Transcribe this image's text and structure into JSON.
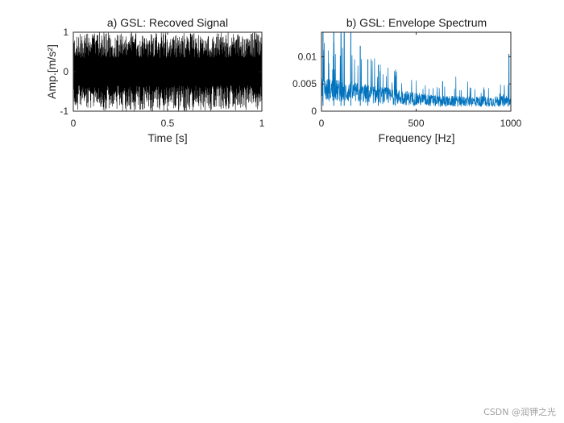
{
  "watermark": "CSDN @润钾之光",
  "chart_data": [
    {
      "type": "line",
      "title": "a) GSL: Recoved Signal",
      "xlabel": "Time [s]",
      "ylabel": "Amp.[m/s²]",
      "xlim": [
        0,
        1
      ],
      "ylim": [
        -1,
        1
      ],
      "xticks": [
        "0",
        "0.5",
        "1"
      ],
      "xtick_values": [
        0,
        0.5,
        1
      ],
      "yticks": [
        "-1",
        "0",
        "1"
      ],
      "ytick_values": [
        -1,
        0,
        1
      ],
      "color": "#000000",
      "grid": false,
      "signal": {
        "description": "dense oscillating vibration signal between -1 and 1",
        "samples": 1000,
        "amplitude_range": [
          -1,
          1
        ]
      }
    },
    {
      "type": "line",
      "title": "b) GSL: Envelope Spectrum",
      "xlabel": "Frequency [Hz]",
      "ylabel": "",
      "xlim": [
        0,
        1000
      ],
      "ylim": [
        0,
        0.0145
      ],
      "xticks": [
        "0",
        "500",
        "1000"
      ],
      "xtick_values": [
        0,
        500,
        1000
      ],
      "yticks": [
        "0",
        "0.005",
        "0.01"
      ],
      "ytick_values": [
        0,
        0.005,
        0.01
      ],
      "color": "#0072BD",
      "grid": false,
      "peaks": [
        {
          "x": 8,
          "y": 0.0145
        },
        {
          "x": 65,
          "y": 0.0145
        },
        {
          "x": 103,
          "y": 0.0145
        },
        {
          "x": 120,
          "y": 0.0145
        },
        {
          "x": 155,
          "y": 0.0145
        },
        {
          "x": 205,
          "y": 0.012
        },
        {
          "x": 245,
          "y": 0.0095
        },
        {
          "x": 300,
          "y": 0.0085
        },
        {
          "x": 390,
          "y": 0.0065
        },
        {
          "x": 640,
          "y": 0.0055
        },
        {
          "x": 990,
          "y": 0.0105
        }
      ],
      "noise_floor_start": 0.0045,
      "noise_floor_end": 0.002
    }
  ]
}
